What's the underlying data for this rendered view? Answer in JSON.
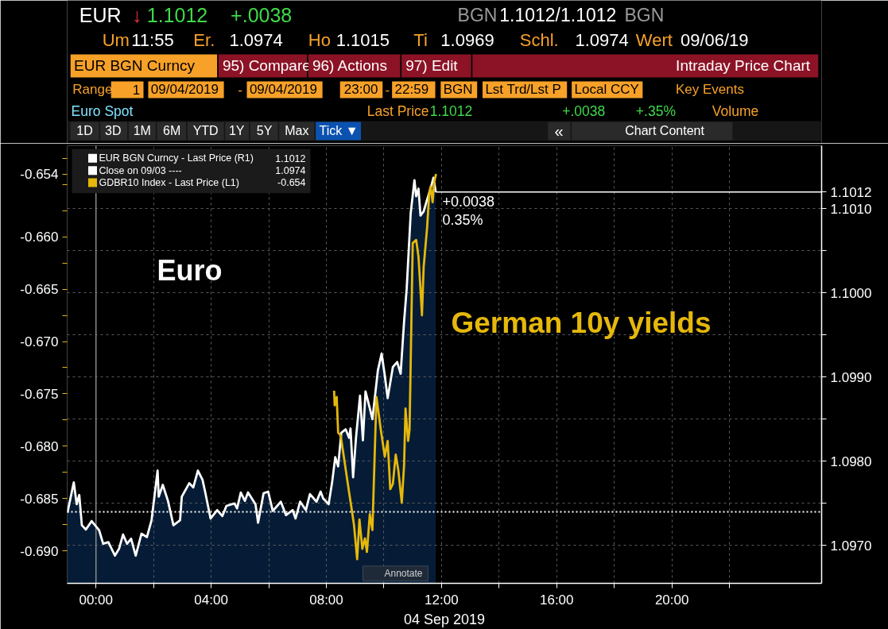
{
  "chart_data": {
    "type": "line",
    "xlim": [
      -1,
      25.2
    ],
    "ylim": [
      -0.6931,
      -0.6513
    ],
    "y2lim": [
      1.09655,
      1.10175
    ],
    "xticks": [
      {
        "value": 0,
        "label": "00:00"
      },
      {
        "value": 2,
        "label": null
      },
      {
        "value": 4,
        "label": "04:00"
      },
      {
        "value": 6,
        "label": null
      },
      {
        "value": 8,
        "label": "08:00"
      },
      {
        "value": 10,
        "label": null
      },
      {
        "value": 12,
        "label": "12:00"
      },
      {
        "value": 14,
        "label": null
      },
      {
        "value": 16,
        "label": "16:00"
      },
      {
        "value": 18,
        "label": null
      },
      {
        "value": 20,
        "label": "20:00"
      },
      {
        "value": 22,
        "label": null
      }
    ],
    "yticks": [
      {
        "value": -0.69,
        "label": "-0.690"
      },
      {
        "value": -0.6875,
        "label": null
      },
      -0.685,
      {
        "value": -0.6825,
        "label": null
      },
      {
        "value": -0.68,
        "label": "-0.680"
      },
      {
        "value": -0.6775,
        "label": null
      },
      -0.675,
      {
        "value": -0.6725,
        "label": null
      },
      {
        "value": -0.67,
        "label": "-0.670"
      },
      {
        "value": -0.6675,
        "label": null
      },
      -0.665,
      {
        "value": -0.6625,
        "label": null
      },
      {
        "value": -0.66,
        "label": "-0.660"
      },
      {
        "value": -0.6575,
        "label": null
      },
      {
        "value": -0.655,
        "label": null
      },
      {
        "value": -0.6525,
        "label": null
      },
      -0.654
    ],
    "y2ticks": [
      {
        "value": 1.097,
        "label": "1.0970"
      },
      {
        "value": 1.0975,
        "label": null
      },
      {
        "value": 1.098,
        "label": "1.0980"
      },
      {
        "value": 1.0985,
        "label": null
      },
      {
        "value": 1.099,
        "label": "1.0990"
      },
      {
        "value": 1.0995,
        "label": null
      },
      {
        "value": 1.1,
        "label": "1.1000"
      },
      {
        "value": 1.1005,
        "label": null
      },
      {
        "value": 1.101,
        "label": "1.1010"
      },
      1.1012
    ],
    "xlabel": "04 Sep 2019",
    "grid": true,
    "legend": "top left",
    "series": [
      {
        "name": "EUR BGN Curncy - Last Price (R1)",
        "type": "area",
        "axis": "y2",
        "color": "#ffffff",
        "x": [
          -0.99,
          -0.77,
          -0.67,
          -0.58,
          -0.49,
          -0.35,
          -0.15,
          0.11,
          0.25,
          0.43,
          0.66,
          0.8,
          0.94,
          1.08,
          1.22,
          1.38,
          1.58,
          1.77,
          1.93,
          2.14,
          2.18,
          2.32,
          2.5,
          2.69,
          2.92,
          2.98,
          3.24,
          3.38,
          3.54,
          3.7,
          3.79,
          3.98,
          4.21,
          4.39,
          4.53,
          4.81,
          4.9,
          5.03,
          5.17,
          5.28,
          5.54,
          5.63,
          5.82,
          5.98,
          6.14,
          6.42,
          6.6,
          6.83,
          6.93,
          7.09,
          7.29,
          7.43,
          7.66,
          7.8,
          7.89,
          8.08,
          8.2,
          8.31,
          8.41,
          8.52,
          8.67,
          8.79,
          8.84,
          8.93,
          9.03,
          9.17,
          9.27,
          9.36,
          9.51,
          9.6,
          9.79,
          9.92,
          10.03,
          10.13,
          10.31,
          10.46,
          10.58,
          10.7,
          10.79,
          10.93,
          11.06,
          11.12,
          11.2,
          11.27,
          11.38,
          11.5,
          11.65,
          11.72,
          11.8
        ],
        "values": [
          1.09739,
          1.09775,
          1.09749,
          1.0976,
          1.09724,
          1.09719,
          1.09729,
          1.09718,
          1.09702,
          1.09704,
          1.09688,
          1.09696,
          1.09713,
          1.09702,
          1.09708,
          1.09688,
          1.09714,
          1.0971,
          1.0973,
          1.09789,
          1.09758,
          1.09772,
          1.09753,
          1.09724,
          1.0973,
          1.09758,
          1.09774,
          1.09769,
          1.09789,
          1.09778,
          1.09764,
          1.09732,
          1.09742,
          1.09735,
          1.09747,
          1.0975,
          1.09744,
          1.09763,
          1.09753,
          1.09763,
          1.09749,
          1.09727,
          1.09762,
          1.09764,
          1.09741,
          1.09752,
          1.09736,
          1.09742,
          1.09732,
          1.09752,
          1.09742,
          1.09761,
          1.09752,
          1.09764,
          1.09756,
          1.09749,
          1.09775,
          1.09805,
          1.09794,
          1.09834,
          1.09838,
          1.09828,
          1.09839,
          1.09781,
          1.09828,
          1.09878,
          1.09825,
          1.09883,
          1.09863,
          1.0985,
          1.09908,
          1.09928,
          1.09902,
          1.09875,
          1.09912,
          1.09918,
          1.09904,
          1.09966,
          1.10005,
          1.10095,
          1.10134,
          1.10115,
          1.10124,
          1.10092,
          1.10097,
          1.10111,
          1.10128,
          1.10137,
          1.1012
        ]
      },
      {
        "name": "GDBR10 Index - Last Price (L1)",
        "type": "line",
        "color": "#e5b80b",
        "x": [
          8.27,
          8.29,
          8.36,
          8.41,
          8.5,
          8.65,
          8.79,
          8.89,
          8.96,
          9.07,
          9.15,
          9.25,
          9.34,
          9.41,
          9.51,
          9.6,
          9.74,
          9.89,
          10.03,
          10.13,
          10.22,
          10.31,
          10.41,
          10.5,
          10.62,
          10.7,
          10.75,
          10.84,
          10.89,
          11.0,
          11.12,
          11.2,
          11.27,
          11.32,
          11.38,
          11.5,
          11.57,
          11.62,
          11.69,
          11.75,
          11.81
        ],
        "values": [
          -0.6747,
          -0.6761,
          -0.6753,
          -0.6787,
          -0.679,
          -0.6818,
          -0.6844,
          -0.6862,
          -0.6875,
          -0.6908,
          -0.687,
          -0.6898,
          -0.6888,
          -0.6901,
          -0.6865,
          -0.688,
          -0.6753,
          -0.6784,
          -0.681,
          -0.6795,
          -0.6841,
          -0.6836,
          -0.6808,
          -0.6823,
          -0.6854,
          -0.6818,
          -0.6764,
          -0.6795,
          -0.6784,
          -0.6606,
          -0.6603,
          -0.6619,
          -0.665,
          -0.6675,
          -0.6629,
          -0.6591,
          -0.656,
          -0.6552,
          -0.6567,
          -0.6547,
          -0.654
        ]
      }
    ],
    "ref_lines": [
      {
        "axis": "y2",
        "value": 1.0974,
        "label": "Close on 09/03 ----",
        "color": "#ffffff",
        "line_style": "dotted"
      },
      {
        "axis": "y2",
        "value": 1.1012,
        "color": "#ffffff",
        "line_style": "solid"
      },
      {
        "axis": "x",
        "value": 0,
        "color": "#8a8a8a",
        "line_style": "solid"
      }
    ],
    "annotations": [
      "EUR",
      "↓",
      "1.1012",
      "+.0038",
      "BGN",
      "1.1012/1.1012",
      "BGN",
      "Um",
      "11:55",
      "Er.",
      "1.0974",
      "Ho",
      "1.1015",
      "Ti",
      "1.0969",
      "Schl.",
      "1.0974",
      "Wert",
      "09/06/19",
      "EUR BGN Curncy",
      "95) Compare",
      "96) Actions",
      "97) Edit",
      "Intraday Price Chart",
      "Range",
      "1",
      "09/04/2019",
      "-",
      "09/04/2019",
      "23:00",
      "-",
      "22:59",
      "BGN",
      "Lst Trd/Lst P",
      "Local CCY",
      "Key Events",
      "Euro Spot",
      "Last Price",
      "1.1012",
      "+.0038",
      "+.35%",
      "Volume",
      "1D",
      "3D",
      "1M",
      "6M",
      "YTD",
      "1Y",
      "5Y",
      "Max",
      "Tick ▼",
      "«",
      "Chart Content",
      "Euro",
      "German 10y yields",
      "+0.0038",
      "0.35%",
      "Annotate",
      "1.1012",
      "1.0974",
      "-0.654"
    ]
  }
}
